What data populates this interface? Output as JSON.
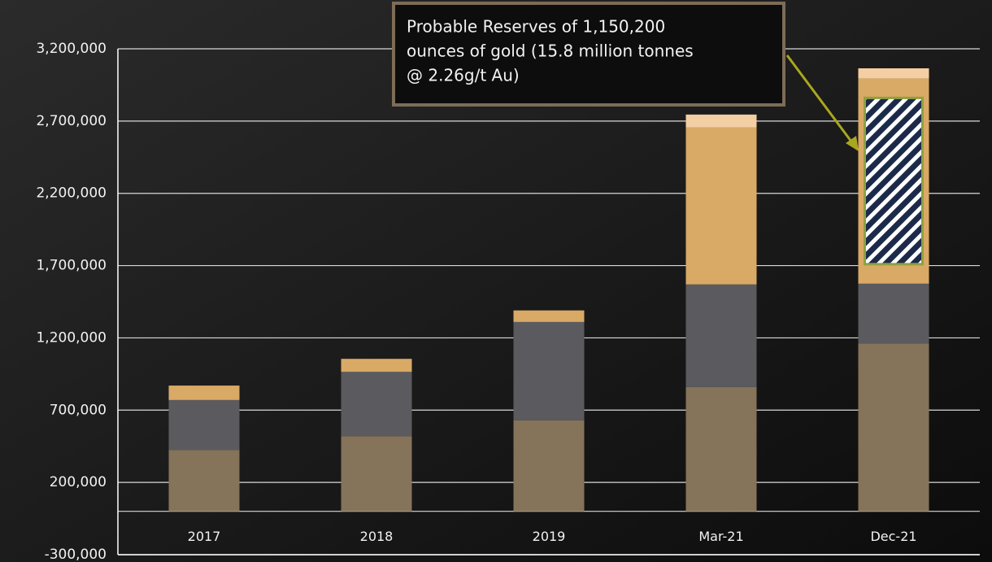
{
  "chart_data": {
    "type": "stacked_bar",
    "categories": [
      "2017",
      "2018",
      "2019",
      "Mar-21",
      "Dec-21"
    ],
    "series": [
      {
        "color": "#85735a",
        "values": [
          425000,
          520000,
          630000,
          860000,
          1160000
        ]
      },
      {
        "color": "#5b5b5f",
        "values": [
          345000,
          445000,
          680000,
          710000,
          415000
        ]
      },
      {
        "color": "#d9a966",
        "values": [
          100000,
          90000,
          80000,
          1085000,
          1420000
        ]
      },
      {
        "color": "#f4cfa3",
        "values": [
          0,
          0,
          0,
          90000,
          70000
        ]
      }
    ],
    "ylim": [
      -300000,
      3200000
    ],
    "yticks": [
      {
        "value": -300000,
        "label": "-300,000"
      },
      {
        "value": 200000,
        "label": "200,000"
      },
      {
        "value": 700000,
        "label": "700,000"
      },
      {
        "value": 1200000,
        "label": "1,200,000"
      },
      {
        "value": 1700000,
        "label": "1,700,000"
      },
      {
        "value": 2200000,
        "label": "2,200,000"
      },
      {
        "value": 2700000,
        "label": "2,700,000"
      },
      {
        "value": 3200000,
        "label": "3,200,000"
      }
    ],
    "grid": true,
    "highlight": {
      "value": 1150200
    },
    "annotation": [
      "Probable Reserves of 1,150,200",
      "ounces of gold (15.8 million tonnes",
      "@ 2.26g/t Au)"
    ]
  }
}
